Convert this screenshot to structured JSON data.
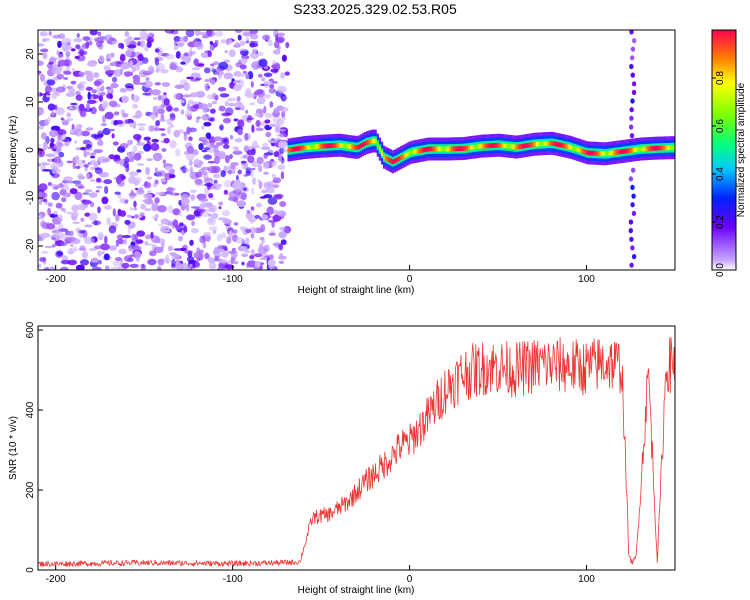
{
  "chart_data": [
    {
      "type": "heatmap",
      "title": "S233.2025.329.02.53.R05",
      "xlabel": "Height of straight line (km)",
      "ylabel": "Frequency (Hz)",
      "xlim": [
        -210,
        150
      ],
      "ylim": [
        -25,
        25
      ],
      "xticks": [
        -200,
        -100,
        0,
        100
      ],
      "yticks": [
        -20,
        -10,
        0,
        10,
        20
      ],
      "xtick_labels": [
        "-200",
        "-100",
        "0",
        "100"
      ],
      "ytick_labels": [
        "-20",
        "-10",
        "0",
        "10",
        "20"
      ],
      "noise_region_x": [
        -210,
        -69
      ],
      "ridge_trace": {
        "x": [
          -69,
          -60,
          -50,
          -40,
          -30,
          -25,
          -20,
          -15,
          -10,
          -5,
          0,
          10,
          20,
          30,
          40,
          50,
          60,
          70,
          80,
          90,
          100,
          110,
          120,
          130,
          140,
          150
        ],
        "freq": [
          0,
          0.5,
          0.8,
          1.0,
          0.5,
          1.5,
          2.0,
          -1.5,
          -2.5,
          -1.5,
          -0.5,
          0.2,
          0.2,
          0.3,
          0.8,
          1.0,
          0.6,
          1.2,
          1.4,
          0.6,
          -0.6,
          -0.8,
          -0.3,
          0.2,
          0.4,
          0.5
        ]
      },
      "vertical_streak_x": 126,
      "colorbar": {
        "label": "Normalized spectral amplitude",
        "min": 0,
        "max": 1,
        "ticks": [
          0.0,
          0.2,
          0.4,
          0.6,
          0.8
        ],
        "tick_labels": [
          "0.0",
          "0.2",
          "0.4",
          "0.6",
          "0.8"
        ]
      },
      "grid": false
    },
    {
      "type": "line",
      "title": "",
      "xlabel": "Height of straight line (km)",
      "ylabel": "SNR (10 * v/v)",
      "xlim": [
        -210,
        150
      ],
      "ylim": [
        0,
        610
      ],
      "xticks": [
        -200,
        -100,
        0,
        100
      ],
      "yticks": [
        0,
        200,
        400,
        600
      ],
      "xtick_labels": [
        "-200",
        "-100",
        "0",
        "100"
      ],
      "ytick_labels": [
        "0",
        "200",
        "400",
        "600"
      ],
      "series": [
        {
          "name": "SNR",
          "color": "#ee3333",
          "x": [
            -210,
            -150,
            -100,
            -75,
            -62,
            -55,
            -45,
            -35,
            -25,
            -15,
            -5,
            0,
            10,
            20,
            25,
            30,
            45,
            60,
            75,
            90,
            100,
            110,
            120,
            124,
            126,
            128,
            135,
            140,
            145,
            150
          ],
          "values": [
            15,
            18,
            16,
            18,
            20,
            130,
            140,
            170,
            220,
            260,
            310,
            320,
            380,
            450,
            470,
            490,
            510,
            500,
            515,
            510,
            505,
            520,
            510,
            30,
            20,
            30,
            500,
            20,
            510,
            520
          ]
        }
      ],
      "grid": false
    }
  ]
}
